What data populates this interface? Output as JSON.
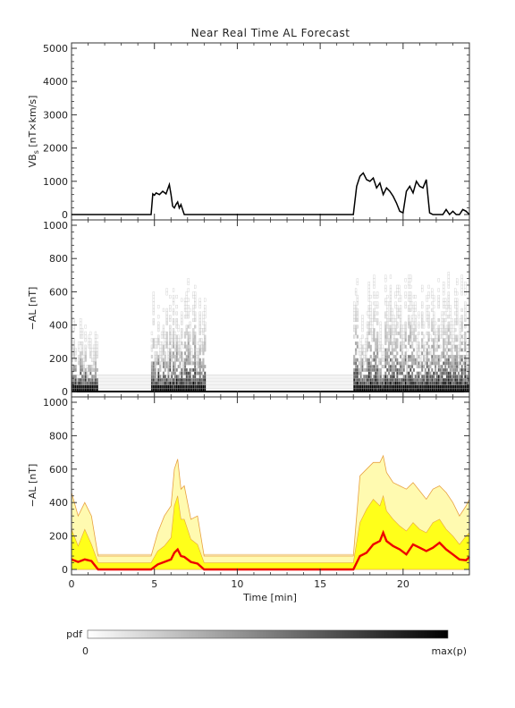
{
  "title": "Near Real Time AL Forecast",
  "chart_data": [
    {
      "type": "line",
      "ylabel": "VB",
      "ylabel_sub": "s",
      "ylabel_unit": " [nT×km/s]",
      "xlim": [
        0,
        24
      ],
      "ylim": [
        0,
        5000
      ],
      "yticks": [
        0,
        1000,
        2000,
        3000,
        4000,
        5000
      ],
      "x": [
        0,
        4.8,
        4.9,
        5.0,
        5.1,
        5.3,
        5.5,
        5.7,
        5.9,
        6.0,
        6.1,
        6.2,
        6.3,
        6.4,
        6.5,
        6.6,
        6.7,
        6.8,
        17.0,
        17.2,
        17.4,
        17.6,
        17.8,
        18.0,
        18.2,
        18.4,
        18.6,
        18.8,
        19.0,
        19.2,
        19.4,
        19.6,
        19.8,
        20.0,
        20.2,
        20.4,
        20.6,
        20.8,
        21.0,
        21.2,
        21.4,
        21.6,
        21.8,
        22.0,
        22.2,
        22.4,
        22.6,
        22.8,
        23.0,
        23.2,
        23.4,
        23.6,
        23.8,
        24.0
      ],
      "values": [
        0,
        0,
        620,
        580,
        650,
        600,
        700,
        620,
        900,
        600,
        250,
        200,
        300,
        380,
        200,
        300,
        150,
        0,
        0,
        850,
        1150,
        1250,
        1050,
        1000,
        1100,
        800,
        950,
        600,
        800,
        700,
        550,
        350,
        100,
        50,
        700,
        850,
        650,
        1000,
        850,
        800,
        1050,
        50,
        0,
        0,
        0,
        0,
        150,
        0,
        100,
        0,
        0,
        150,
        100,
        0
      ]
    },
    {
      "type": "heatmap",
      "ylabel": "−AL [nT]",
      "xlim": [
        0,
        24
      ],
      "ylim": [
        0,
        1000
      ],
      "yticks": [
        0,
        200,
        400,
        600,
        800,
        1000
      ],
      "cell_width": 0.1,
      "cell_height": 20,
      "columns": [
        {
          "x0": 0.0,
          "x1": 1.6,
          "max": 440,
          "scale": 1.0
        },
        {
          "x0": 4.8,
          "x1": 8.0,
          "max": 680,
          "scale": 1.0
        },
        {
          "x0": 17.0,
          "x1": 24.0,
          "max": 720,
          "scale": 1.0
        }
      ],
      "background_band": [
        0,
        100
      ]
    },
    {
      "type": "area",
      "xlabel": "Time [min]",
      "ylabel": "−AL [nT]",
      "xlim": [
        0,
        24
      ],
      "ylim": [
        0,
        1000
      ],
      "xticks": [
        0,
        5,
        10,
        15,
        20
      ],
      "yticks": [
        0,
        200,
        400,
        600,
        800,
        1000
      ],
      "x": [
        0,
        0.4,
        0.8,
        1.2,
        1.6,
        4.8,
        5.2,
        5.6,
        6.0,
        6.2,
        6.4,
        6.6,
        6.8,
        7.2,
        7.6,
        8.0,
        17.0,
        17.4,
        17.8,
        18.2,
        18.6,
        18.8,
        19.0,
        19.4,
        19.8,
        20.2,
        20.6,
        21.0,
        21.4,
        21.8,
        22.2,
        22.6,
        23.0,
        23.4,
        23.8,
        24.0
      ],
      "outer_upper": [
        460,
        320,
        400,
        320,
        80,
        80,
        220,
        320,
        380,
        600,
        660,
        480,
        500,
        300,
        320,
        80,
        80,
        560,
        600,
        640,
        640,
        680,
        580,
        520,
        500,
        480,
        520,
        470,
        420,
        480,
        500,
        460,
        400,
        320,
        380,
        420
      ],
      "inner_upper": [
        240,
        140,
        240,
        150,
        40,
        40,
        110,
        140,
        190,
        380,
        440,
        300,
        300,
        180,
        150,
        40,
        40,
        280,
        360,
        420,
        380,
        440,
        350,
        300,
        260,
        230,
        280,
        240,
        220,
        280,
        300,
        240,
        200,
        150,
        200,
        220
      ],
      "median": [
        60,
        45,
        60,
        50,
        0,
        0,
        30,
        45,
        60,
        100,
        120,
        80,
        75,
        45,
        35,
        0,
        0,
        80,
        100,
        150,
        170,
        220,
        170,
        140,
        120,
        90,
        150,
        130,
        110,
        130,
        160,
        120,
        90,
        60,
        55,
        75
      ],
      "band_low": 70,
      "band_high": 90
    },
    {
      "type": "colorbar",
      "label": "pdf",
      "min_label": "0",
      "max_label": "max(p)"
    }
  ]
}
